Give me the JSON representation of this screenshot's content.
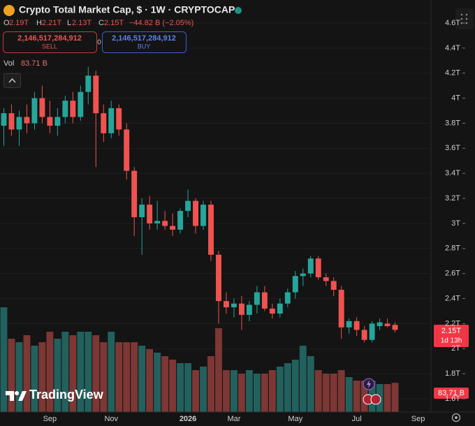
{
  "header": {
    "title": "Crypto Total Market Cap, $ · 1W · CRYPTOCAP",
    "o_label": "O",
    "o_value": "2.19T",
    "h_label": "H",
    "h_value": "2.21T",
    "l_label": "L",
    "l_value": "2.13T",
    "c_label": "C",
    "c_value": "2.15T",
    "change": "−44.82 B (−2.05%)",
    "sell_price": "2,146,517,284,912",
    "sell_label": "SELL",
    "spread": "0",
    "buy_price": "2,146,517,284,912",
    "buy_label": "BUY",
    "vol_label": "Vol",
    "vol_value": "83.71 B",
    "price_tag": "2.15T",
    "countdown": "1d 13h",
    "vol_tag": "83.71 B",
    "logo": "TradingView"
  },
  "chart_data": {
    "type": "candlestick",
    "categories": [
      null,
      null,
      null,
      null,
      null,
      null,
      "Sep",
      null,
      null,
      null,
      null,
      null,
      null,
      null,
      "Nov",
      null,
      null,
      null,
      null,
      null,
      null,
      null,
      null,
      null,
      "2026",
      null,
      null,
      null,
      null,
      null,
      "Mar",
      null,
      null,
      null,
      null,
      null,
      null,
      null,
      "May",
      null,
      null,
      null,
      null,
      null,
      null,
      null,
      "Jul",
      null,
      null,
      null,
      null,
      null,
      null,
      null,
      "Sep",
      null
    ],
    "open": [
      3.78,
      3.88,
      3.75,
      3.85,
      3.8,
      4.0,
      3.85,
      3.78,
      3.85,
      3.98,
      3.85,
      4.05,
      4.18,
      3.88,
      3.72,
      3.92,
      3.75,
      3.42,
      3.05,
      3.15,
      3.0,
      3.02,
      2.98,
      2.95,
      3.1,
      3.18,
      2.98,
      3.15,
      2.75,
      2.38,
      2.33,
      2.36,
      2.27,
      2.35,
      2.45,
      2.32,
      2.28,
      2.36,
      2.45,
      2.58,
      2.6,
      2.72,
      2.57,
      2.54,
      2.47,
      2.17,
      2.22,
      2.15,
      2.07,
      2.18,
      2.2,
      2.19,
      null,
      null,
      null,
      null
    ],
    "high": [
      3.92,
      3.95,
      3.9,
      3.95,
      4.05,
      4.1,
      3.98,
      3.92,
      4.02,
      4.05,
      4.1,
      4.25,
      4.22,
      3.95,
      3.98,
      3.95,
      3.8,
      3.45,
      3.2,
      3.22,
      3.18,
      3.1,
      3.08,
      3.12,
      3.27,
      3.2,
      3.18,
      3.18,
      2.78,
      2.45,
      2.4,
      2.42,
      2.38,
      2.5,
      2.5,
      2.36,
      2.4,
      2.48,
      2.62,
      2.64,
      2.74,
      2.74,
      2.6,
      2.57,
      2.5,
      2.24,
      2.25,
      2.18,
      2.22,
      2.24,
      2.24,
      2.21,
      null,
      null,
      null,
      null
    ],
    "low": [
      3.62,
      3.7,
      3.62,
      3.72,
      3.75,
      3.8,
      3.72,
      3.7,
      3.8,
      3.8,
      3.82,
      3.95,
      3.45,
      3.65,
      3.68,
      3.7,
      3.35,
      2.9,
      2.75,
      2.95,
      2.95,
      2.95,
      2.9,
      2.92,
      3.05,
      2.92,
      2.95,
      2.7,
      2.2,
      2.28,
      2.25,
      2.15,
      2.22,
      2.28,
      2.3,
      2.24,
      2.25,
      2.33,
      2.4,
      2.5,
      2.57,
      2.55,
      2.5,
      2.42,
      2.08,
      2.12,
      2.1,
      2.05,
      2.05,
      2.15,
      2.17,
      2.13,
      null,
      null,
      null,
      null
    ],
    "close": [
      3.88,
      3.75,
      3.85,
      3.8,
      4.0,
      3.85,
      3.78,
      3.85,
      3.98,
      3.85,
      4.05,
      4.18,
      3.88,
      3.72,
      3.92,
      3.75,
      3.42,
      3.05,
      3.15,
      3.0,
      3.02,
      2.98,
      2.95,
      3.1,
      3.18,
      2.98,
      3.15,
      2.75,
      2.38,
      2.33,
      2.36,
      2.27,
      2.35,
      2.45,
      2.32,
      2.28,
      2.36,
      2.45,
      2.58,
      2.6,
      2.72,
      2.57,
      2.54,
      2.47,
      2.17,
      2.22,
      2.15,
      2.07,
      2.2,
      2.21,
      2.18,
      2.15,
      null,
      null,
      null,
      null
    ],
    "volume": [
      300,
      210,
      200,
      220,
      190,
      200,
      230,
      210,
      230,
      220,
      230,
      230,
      220,
      200,
      230,
      200,
      200,
      200,
      190,
      180,
      170,
      160,
      150,
      140,
      140,
      120,
      130,
      160,
      240,
      120,
      120,
      110,
      120,
      110,
      110,
      120,
      130,
      140,
      150,
      190,
      160,
      120,
      110,
      110,
      120,
      100,
      90,
      90,
      90,
      80,
      80,
      83.71,
      null,
      null,
      null,
      null
    ],
    "up_color": "#26a69a",
    "down_color": "#ef5350",
    "volume_up_color": "#22615d",
    "volume_down_color": "#7d3735",
    "ylim": [
      1.494,
      4.784
    ],
    "yticks": [
      {
        "value": 4.6,
        "label": "4.6T"
      },
      {
        "value": 4.4,
        "label": "4.4T"
      },
      {
        "value": 4.2,
        "label": "4.2T"
      },
      {
        "value": 4,
        "label": "4T"
      },
      {
        "value": 3.8,
        "label": "3.8T"
      },
      {
        "value": 3.6,
        "label": "3.6T"
      },
      {
        "value": 3.4,
        "label": "3.4T"
      },
      {
        "value": 3.2,
        "label": "3.2T"
      },
      {
        "value": 3,
        "label": "3T"
      },
      {
        "value": 2.8,
        "label": "2.8T"
      },
      {
        "value": 2.6,
        "label": "2.6T"
      },
      {
        "value": 2.4,
        "label": "2.4T"
      },
      {
        "value": 2.2,
        "label": "2.2T"
      },
      {
        "value": 2,
        "label": "2T"
      },
      {
        "value": 1.8,
        "label": "1.8T"
      },
      {
        "value": 1.6,
        "label": "1.6T"
      }
    ],
    "grid": true
  }
}
